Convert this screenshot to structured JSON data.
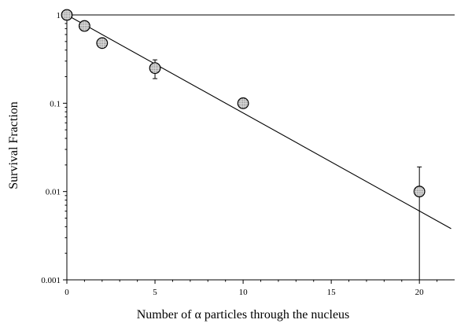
{
  "chart_data": {
    "type": "scatter",
    "title": "",
    "xlabel": "Number of α particles through the nucleus",
    "ylabel": "Survival Fraction",
    "xlim": [
      0,
      22
    ],
    "ylim": [
      0.001,
      1
    ],
    "yscale": "log",
    "grid": false,
    "x_ticks": [
      0,
      5,
      10,
      15,
      20
    ],
    "x_tick_labels": [
      "0",
      "5",
      "10",
      "15",
      "20"
    ],
    "y_ticks": [
      0.001,
      0.01,
      0.1,
      1
    ],
    "y_tick_labels": [
      "0.001",
      "0.01",
      "0.1",
      "1"
    ],
    "series": [
      {
        "x": [
          0,
          1,
          2,
          5,
          10,
          20
        ],
        "y": [
          1.0,
          0.75,
          0.48,
          0.25,
          0.1,
          0.01
        ],
        "y_err_low": [
          null,
          null,
          null,
          0.19,
          null,
          0.0
        ],
        "y_err_high": [
          null,
          null,
          null,
          0.31,
          null,
          0.019
        ]
      }
    ],
    "fit_line": {
      "x": [
        0,
        21.8
      ],
      "y": [
        1.0,
        0.0038
      ]
    },
    "colors": {
      "marker_fill": "#c8c8c8",
      "marker_edge": "#000000",
      "line": "#000000"
    }
  }
}
